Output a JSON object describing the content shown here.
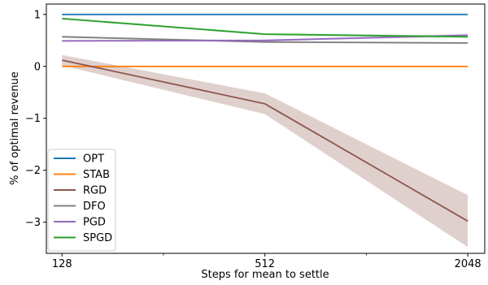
{
  "chart_data": {
    "type": "line",
    "title": "",
    "xlabel": "Steps for mean to settle",
    "ylabel": "% of optimal revenue",
    "x_scale": "log2",
    "x": [
      128,
      512,
      2048
    ],
    "xlim": [
      115,
      2300
    ],
    "ylim": [
      -3.6,
      1.2
    ],
    "xticks": [
      128,
      512,
      2048
    ],
    "xtick_labels": [
      "128",
      "512",
      "2048"
    ],
    "yticks": [
      1,
      0,
      -1,
      -2,
      -3
    ],
    "ytick_labels": [
      "1",
      "0",
      "−1",
      "−2",
      "−3"
    ],
    "grid": false,
    "legend_position": "lower-left",
    "series": [
      {
        "name": "OPT",
        "color": "#1f77b4",
        "values": [
          1.0,
          1.0,
          1.0
        ]
      },
      {
        "name": "STAB",
        "color": "#ff7f0e",
        "values": [
          0.0,
          0.0,
          0.0
        ]
      },
      {
        "name": "RGD",
        "color": "#8c564b",
        "values": [
          0.12,
          -0.72,
          -2.98
        ],
        "band_lower": [
          0.02,
          -0.92,
          -3.48
        ],
        "band_upper": [
          0.22,
          -0.52,
          -2.48
        ]
      },
      {
        "name": "DFO",
        "color": "#7f7f7f",
        "values": [
          0.57,
          0.47,
          0.45
        ],
        "band_lower": [
          0.55,
          0.45,
          0.43
        ],
        "band_upper": [
          0.59,
          0.49,
          0.47
        ]
      },
      {
        "name": "PGD",
        "color": "#9467bd",
        "values": [
          0.49,
          0.5,
          0.6
        ],
        "band_lower": [
          0.47,
          0.48,
          0.57
        ],
        "band_upper": [
          0.51,
          0.52,
          0.63
        ]
      },
      {
        "name": "SPGD",
        "color": "#2ca02c",
        "values": [
          0.92,
          0.62,
          0.57
        ],
        "band_lower": [
          0.9,
          0.6,
          0.55
        ],
        "band_upper": [
          0.94,
          0.64,
          0.59
        ]
      }
    ]
  }
}
